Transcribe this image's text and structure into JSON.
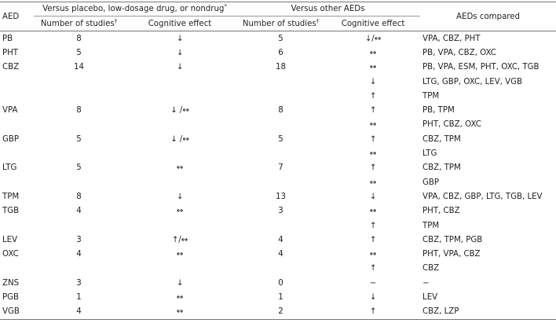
{
  "header": {
    "aed": "AED",
    "group1": "Versus placebo, low-dosage drug, or nondrug",
    "group1_mark": "*",
    "group2": "Versus other AEDs",
    "compared": "AEDs compared",
    "sub": [
      {
        "text": "Number of studies",
        "mark": "†"
      },
      {
        "text": "Cognitive effect"
      },
      {
        "text": "Number of studies",
        "mark": "†"
      },
      {
        "text": "Cognitive effect"
      }
    ]
  },
  "table": {
    "rows": [
      [
        "PB",
        "8",
        "↓",
        "5",
        "↓/↔",
        "VPA, CBZ, PHT"
      ],
      [
        "PHT",
        "5",
        "↓",
        "6",
        "↔",
        "PB, VPA, CBZ, OXC"
      ],
      [
        "CBZ",
        "14",
        "↓",
        "18",
        "↔",
        "PB, VPA, ESM, PHT, OXC, TGB"
      ],
      [
        null,
        null,
        null,
        null,
        "↓",
        "LTG, GBP, OXC, LEV, VGB"
      ],
      [
        null,
        null,
        null,
        null,
        "↑",
        "TPM"
      ],
      [
        "VPA",
        "8",
        "↓ /↔",
        "8",
        "↑",
        "PB, TPM"
      ],
      [
        null,
        null,
        null,
        null,
        "↔",
        "PHT, CBZ, OXC"
      ],
      [
        "GBP",
        "5",
        "↓ /↔",
        "5",
        "↑",
        "CBZ, TPM"
      ],
      [
        null,
        null,
        null,
        null,
        "↔",
        "LTG"
      ],
      [
        "LTG",
        "5",
        "↔",
        "7",
        "↑",
        "CBZ, TPM"
      ],
      [
        null,
        null,
        null,
        null,
        "↔",
        "GBP"
      ],
      [
        "TPM",
        "8",
        "↓",
        "13",
        "↓",
        "VPA, CBZ, GBP, LTG, TGB, LEV"
      ],
      [
        "TGB",
        "4",
        "↔",
        "3",
        "↔",
        "PHT, CBZ"
      ],
      [
        null,
        null,
        null,
        null,
        "↑",
        "TPM"
      ],
      [
        "LEV",
        "3",
        "↑/↔",
        "4",
        "↑",
        "CBZ, TPM, PGB"
      ],
      [
        "OXC",
        "4",
        "↔",
        "4",
        "↔",
        "PHT, VPA, CBZ"
      ],
      [
        null,
        null,
        null,
        null,
        "↑",
        "CBZ"
      ],
      [
        "ZNS",
        "3",
        "↓",
        "0",
        "−",
        "−"
      ],
      [
        "PGB",
        "1",
        "↔",
        "1",
        "↓",
        "LEV"
      ],
      [
        "VGB",
        "4",
        "↔",
        "2",
        "↑",
        "CBZ, LZP"
      ]
    ]
  }
}
